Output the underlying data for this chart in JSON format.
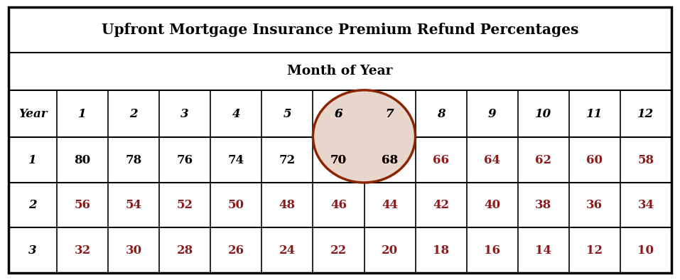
{
  "title": "Upfront Mortgage Insurance Premium Refund Percentages",
  "subtitle": "Month of Year",
  "col_headers": [
    "Year",
    "1",
    "2",
    "3",
    "4",
    "5",
    "6",
    "7",
    "8",
    "9",
    "10",
    "11",
    "12"
  ],
  "row_headers": [
    "1",
    "2",
    "3"
  ],
  "table_data": [
    [
      80,
      78,
      76,
      74,
      72,
      70,
      68,
      66,
      64,
      62,
      60,
      58
    ],
    [
      56,
      54,
      52,
      50,
      48,
      46,
      44,
      42,
      40,
      38,
      36,
      34
    ],
    [
      32,
      30,
      28,
      26,
      24,
      22,
      20,
      18,
      16,
      14,
      12,
      10
    ]
  ],
  "title_color": "#000000",
  "header_color": "#000000",
  "red_color": "#8B1A1A",
  "black_color": "#000000",
  "ellipse_color": "#8B2500",
  "ellipse_fill": "#E8D5CC",
  "bg_color": "#FFFFFF",
  "figsize": [
    9.57,
    3.94
  ],
  "dpi": 100
}
